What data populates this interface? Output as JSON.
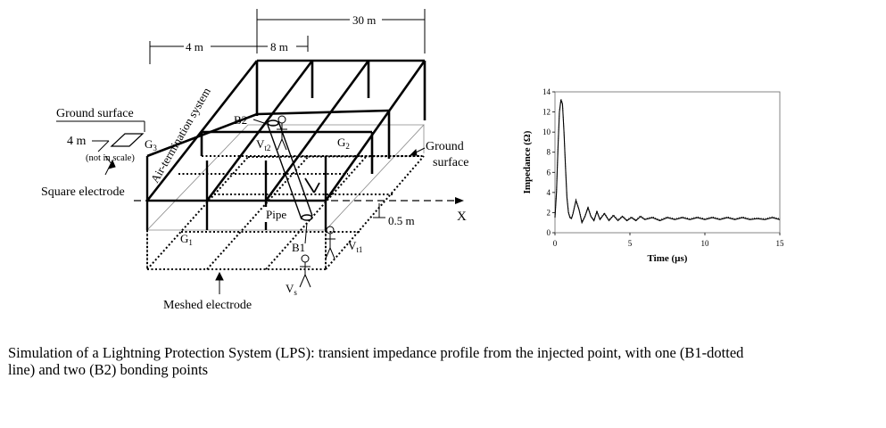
{
  "diagram": {
    "dim_30m": "30 m",
    "dim_4m_top": "4 m",
    "dim_8m": "8 m",
    "label_ground_surface_left": "Ground surface",
    "label_4m_left": "4 m",
    "label_g3": "G",
    "label_g3_sub": "3",
    "label_not_in_scale": "(not in scale)",
    "label_square_electrode": "Square electrode",
    "label_air_termination": "Air-termination system",
    "label_b2": "B2",
    "label_vt2": "V",
    "label_vt2_sub": "t2",
    "label_g2": "G",
    "label_g2_sub": "2",
    "label_ground_right_line1": "Ground",
    "label_ground_right_line2": "surface",
    "label_pipe": "Pipe",
    "label_05m": "0.5 m",
    "label_x": "X",
    "label_g1": "G",
    "label_g1_sub": "1",
    "label_b1": "B1",
    "label_vt1": "V",
    "label_vt1_sub": "t1",
    "label_vs": "V",
    "label_vs_sub": "s",
    "label_meshed_electrode": "Meshed electrode"
  },
  "chart_data": {
    "type": "line",
    "title": "",
    "xlabel": "Time (µs)",
    "ylabel": "Impedance (Ω)",
    "xlim": [
      0,
      15
    ],
    "ylim": [
      0,
      14
    ],
    "x_ticks": [
      0,
      5,
      10,
      15
    ],
    "y_ticks": [
      0,
      2,
      4,
      6,
      8,
      10,
      12,
      14
    ],
    "grid": false,
    "legend": "none",
    "series": [
      {
        "style": "solid",
        "x": [
          0,
          0.1,
          0.2,
          0.3,
          0.4,
          0.5,
          0.6,
          0.7,
          0.8,
          0.9,
          1.0,
          1.1,
          1.2,
          1.4,
          1.6,
          1.8,
          2.0,
          2.2,
          2.4,
          2.6,
          2.8,
          3.0,
          3.3,
          3.6,
          3.9,
          4.2,
          4.5,
          4.8,
          5.1,
          5.4,
          5.7,
          6.0,
          6.5,
          7.0,
          7.5,
          8.0,
          8.5,
          9.0,
          9.5,
          10.0,
          10.5,
          11.0,
          11.5,
          12.0,
          12.5,
          13.0,
          13.5,
          14.0,
          14.5,
          15.0
        ],
        "y": [
          1.5,
          4.0,
          8.5,
          12.0,
          13.2,
          12.8,
          10.0,
          6.5,
          3.5,
          2.0,
          1.5,
          1.4,
          1.9,
          3.2,
          2.3,
          1.0,
          1.6,
          2.5,
          1.6,
          1.2,
          2.1,
          1.3,
          1.9,
          1.2,
          1.7,
          1.2,
          1.6,
          1.2,
          1.5,
          1.2,
          1.6,
          1.3,
          1.5,
          1.2,
          1.5,
          1.3,
          1.5,
          1.3,
          1.5,
          1.3,
          1.5,
          1.3,
          1.5,
          1.3,
          1.5,
          1.3,
          1.4,
          1.3,
          1.5,
          1.3
        ]
      }
    ]
  },
  "caption": {
    "line1": "Simulation of a Lightning Protection System (LPS): transient impedance profile from the injected point, with one (B1-dotted",
    "line2": "line) and two (B2) bonding points"
  }
}
